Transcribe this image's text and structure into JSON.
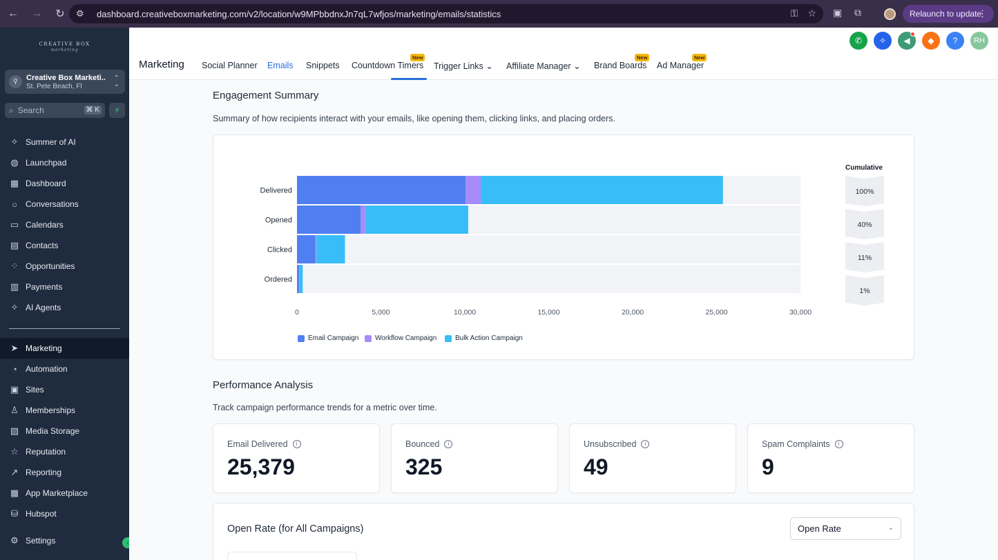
{
  "browser": {
    "url": "dashboard.creativeboxmarketing.com/v2/location/w9MPbbdnxJn7qL7wfjos/marketing/emails/statistics",
    "relaunch_label": "Relaunch to update"
  },
  "sidebar": {
    "brand": "CREATIVE BOX",
    "brand_sub": "marketing",
    "account_name": "Creative Box Marketi...",
    "account_location": "St. Pete Beach, Fl",
    "search_placeholder": "Search",
    "search_shortcut": "⌘ K",
    "items": [
      {
        "label": "Summer of AI",
        "icon": "sparkle-icon"
      },
      {
        "label": "Launchpad",
        "icon": "rocket-icon"
      },
      {
        "label": "Dashboard",
        "icon": "grid-icon"
      },
      {
        "label": "Conversations",
        "icon": "chat-icon"
      },
      {
        "label": "Calendars",
        "icon": "calendar-icon"
      },
      {
        "label": "Contacts",
        "icon": "contacts-icon"
      },
      {
        "label": "Opportunities",
        "icon": "pipeline-icon"
      },
      {
        "label": "Payments",
        "icon": "payments-icon"
      },
      {
        "label": "AI Agents",
        "icon": "sparkle-icon"
      },
      {
        "label": "Marketing",
        "icon": "send-icon"
      },
      {
        "label": "Automation",
        "icon": "automation-icon"
      },
      {
        "label": "Sites",
        "icon": "sites-icon"
      },
      {
        "label": "Memberships",
        "icon": "membership-icon"
      },
      {
        "label": "Media Storage",
        "icon": "image-icon"
      },
      {
        "label": "Reputation",
        "icon": "star-icon"
      },
      {
        "label": "Reporting",
        "icon": "trend-icon"
      },
      {
        "label": "App Marketplace",
        "icon": "apps-icon"
      },
      {
        "label": "Hubspot",
        "icon": "database-icon"
      },
      {
        "label": "Settings",
        "icon": "gear-icon"
      }
    ]
  },
  "header": {
    "title": "Marketing",
    "tabs": [
      {
        "label": "Social Planner"
      },
      {
        "label": "Emails",
        "active": true
      },
      {
        "label": "Snippets"
      },
      {
        "label": "Countdown Timers",
        "badge": "New"
      },
      {
        "label": "Trigger Links"
      },
      {
        "label": "Affiliate Manager"
      },
      {
        "label": "Brand Boards",
        "badge": "New"
      },
      {
        "label": "Ad Manager",
        "badge": "New"
      }
    ],
    "avatar_initials": "RH"
  },
  "engagement": {
    "title": "Engagement Summary",
    "description": "Summary of how recipients interact with your emails, like opening them, clicking links, and placing orders."
  },
  "chart_data": {
    "type": "bar",
    "orientation": "horizontal",
    "stacked": true,
    "categories": [
      "Delivered",
      "Opened",
      "Clicked",
      "Ordered"
    ],
    "series": [
      {
        "name": "Email Campaign",
        "color": "#4f7ff1",
        "values": [
          10050,
          3800,
          1100,
          120
        ]
      },
      {
        "name": "Workflow Campaign",
        "color": "#a78bfa",
        "values": [
          900,
          300,
          60,
          20
        ]
      },
      {
        "name": "Bulk Action Campaign",
        "color": "#38bdf8",
        "values": [
          14429,
          6100,
          1700,
          200
        ]
      }
    ],
    "xlim": [
      0,
      30000
    ],
    "xticks": [
      0,
      5000,
      10000,
      15000,
      20000,
      25000,
      30000
    ],
    "xtick_labels": [
      "0",
      "5,000",
      "10,000",
      "15,000",
      "20,000",
      "25,000",
      "30,000"
    ],
    "cumulative_title": "Cumulative",
    "cumulative": [
      "100%",
      "40%",
      "11%",
      "1%"
    ],
    "legend_position": "bottom-left"
  },
  "performance": {
    "title": "Performance Analysis",
    "description": "Track campaign performance trends for a metric over time.",
    "stats": [
      {
        "label": "Email Delivered",
        "value": "25,379"
      },
      {
        "label": "Bounced",
        "value": "325"
      },
      {
        "label": "Unsubscribed",
        "value": "49"
      },
      {
        "label": "Spam Complaints",
        "value": "9"
      }
    ],
    "open_rate_title": "Open Rate (for All Campaigns)",
    "metric_select": "Open Rate"
  },
  "colors": {
    "accent": "#2a6fdb",
    "sidebar_bg": "#1f2b3e",
    "badge": "#f5b50b"
  }
}
